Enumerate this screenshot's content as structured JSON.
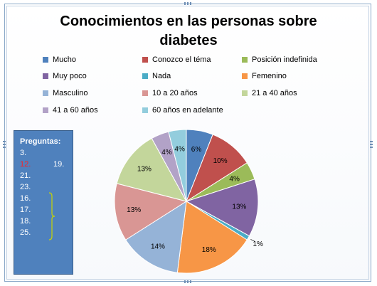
{
  "chart_data": {
    "type": "pie",
    "title": "Conocimientos en las personas sobre diabetes",
    "categories": [
      "Mucho",
      "Conozco el téma",
      "Posición indefinida",
      "Muy poco",
      "Nada",
      "Femenino",
      "Masculino",
      "10 a 20 años",
      "21 a 40 años",
      "41 a 60 años",
      "60 años en adelante"
    ],
    "values": [
      6,
      10,
      4,
      13,
      1,
      18,
      14,
      13,
      13,
      4,
      4
    ],
    "data_labels": [
      "6%",
      "10%",
      "4%",
      "13%",
      "1%",
      "18%",
      "14%",
      "13%",
      "13%",
      "4%",
      "4%"
    ],
    "colors": [
      "#4f81bd",
      "#c0504d",
      "#9bbb59",
      "#8064a2",
      "#4bacc6",
      "#f79646",
      "#95b3d7",
      "#d99694",
      "#c3d69b",
      "#b2a2c7",
      "#93cddd"
    ],
    "legend_position": "top"
  },
  "questions_box": {
    "heading": "Preguntas:",
    "items": [
      {
        "text": "3.",
        "highlight": false
      },
      {
        "text": "12.",
        "highlight": true
      },
      {
        "text": "19.",
        "highlight": false
      },
      {
        "text": "21.",
        "highlight": false
      },
      {
        "text": "23.",
        "highlight": false
      },
      {
        "text": "16.",
        "highlight": false
      },
      {
        "text": "17.",
        "highlight": false
      },
      {
        "text": "18.",
        "highlight": false
      },
      {
        "text": "25.",
        "highlight": false
      }
    ],
    "background": "#4f81bd",
    "highlight_color": "#ff2020",
    "bracket_color": "#c8d400"
  }
}
